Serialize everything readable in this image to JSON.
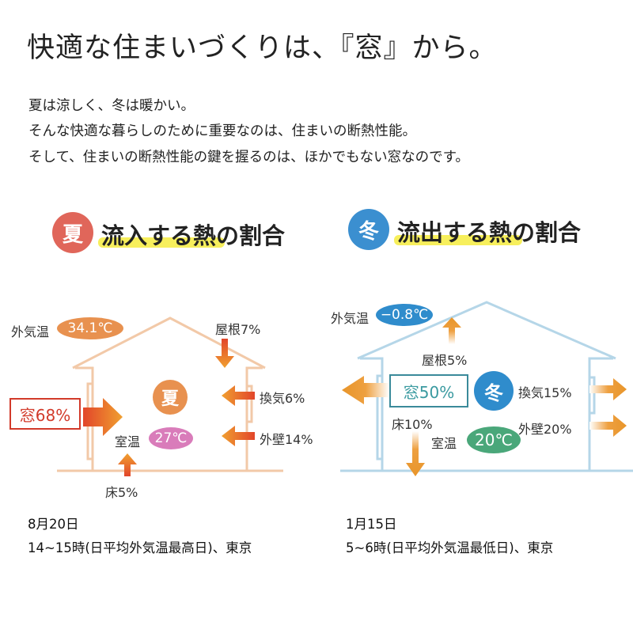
{
  "title": "快適な住まいづくりは、『窓』から。",
  "intro": [
    "夏は涼しく、冬は暖かい。",
    "そんな快適な暮らしのために重要なのは、住まいの断熱性能。",
    "そして、住まいの断熱性能の鍵を握るのは、ほかでもない窓なのです。"
  ],
  "summer": {
    "badge": "夏",
    "heading": "流入する熱の割合",
    "outside_label": "外気温",
    "outside_temp": "34.1℃",
    "roof": "屋根7%",
    "window": "窓68%",
    "ventilation": "換気6%",
    "wall": "外壁14%",
    "floor": "床5%",
    "room_label": "室温",
    "room_temp": "27℃",
    "house_badge": "夏",
    "caption_date": "8月20日",
    "caption_detail": "14~15時(日平均外気温最高日)、東京",
    "colors": {
      "badge": "#e0665a",
      "house": "#f2c9a8",
      "accent": "#e8914f",
      "window": "#d23a2a",
      "room": "#d97cba"
    }
  },
  "winter": {
    "badge": "冬",
    "heading": "流出する熱の割合",
    "outside_label": "外気温",
    "outside_temp": "−0.8℃",
    "roof": "屋根5%",
    "window": "窓50%",
    "ventilation": "換気15%",
    "wall": "外壁20%",
    "floor": "床10%",
    "room_label": "室温",
    "room_temp": "20℃",
    "house_badge": "冬",
    "caption_date": "1月15日",
    "caption_detail": "5~6時(日平均外気温最低日)、東京",
    "colors": {
      "badge": "#3b8fd0",
      "house": "#b5d6e8",
      "accent": "#2f8ccc",
      "window": "#3a9aa0",
      "room": "#4aa77a"
    }
  }
}
